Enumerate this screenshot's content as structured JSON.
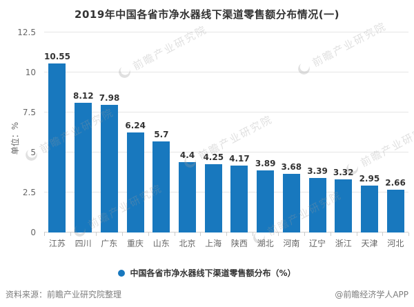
{
  "title": "2019年中国各省市净水器线下渠道零售额分布情况(一)",
  "y_axis": {
    "unit_label": "单位：%"
  },
  "legend": {
    "label": "中国各省市净水器线下渠道零售额分布（%）"
  },
  "footer": {
    "source": "资料来源：前瞻产业研究院整理",
    "credit": "@前瞻经济学人APP"
  },
  "watermark": {
    "text": "前瞻产业研究院"
  },
  "colors": {
    "bar": "#1878be",
    "grid": "#e5e5e5",
    "axis": "#cfcfcf",
    "title_text": "#333333",
    "tick_text": "#666666",
    "value_text": "#333333",
    "footer_text": "#7d7d7d"
  },
  "chart_data": {
    "type": "bar",
    "title": "2019年中国各省市净水器线下渠道零售额分布情况(一)",
    "series_name": "中国各省市净水器线下渠道零售额分布（%）",
    "categories": [
      "江苏",
      "四川",
      "广东",
      "重庆",
      "山东",
      "北京",
      "上海",
      "陕西",
      "湖北",
      "河南",
      "辽宁",
      "浙江",
      "天津",
      "河北"
    ],
    "values": [
      10.55,
      8.12,
      7.98,
      6.24,
      5.7,
      4.4,
      4.25,
      4.17,
      3.89,
      3.68,
      3.39,
      3.32,
      2.95,
      2.66
    ],
    "xlabel": "",
    "ylabel": "单位：%",
    "ylim": [
      0,
      12.5
    ],
    "yticks": [
      0,
      2.5,
      5,
      7.5,
      10,
      12.5
    ],
    "grid": true,
    "legend_position": "bottom",
    "bar_color": "#1878be"
  }
}
